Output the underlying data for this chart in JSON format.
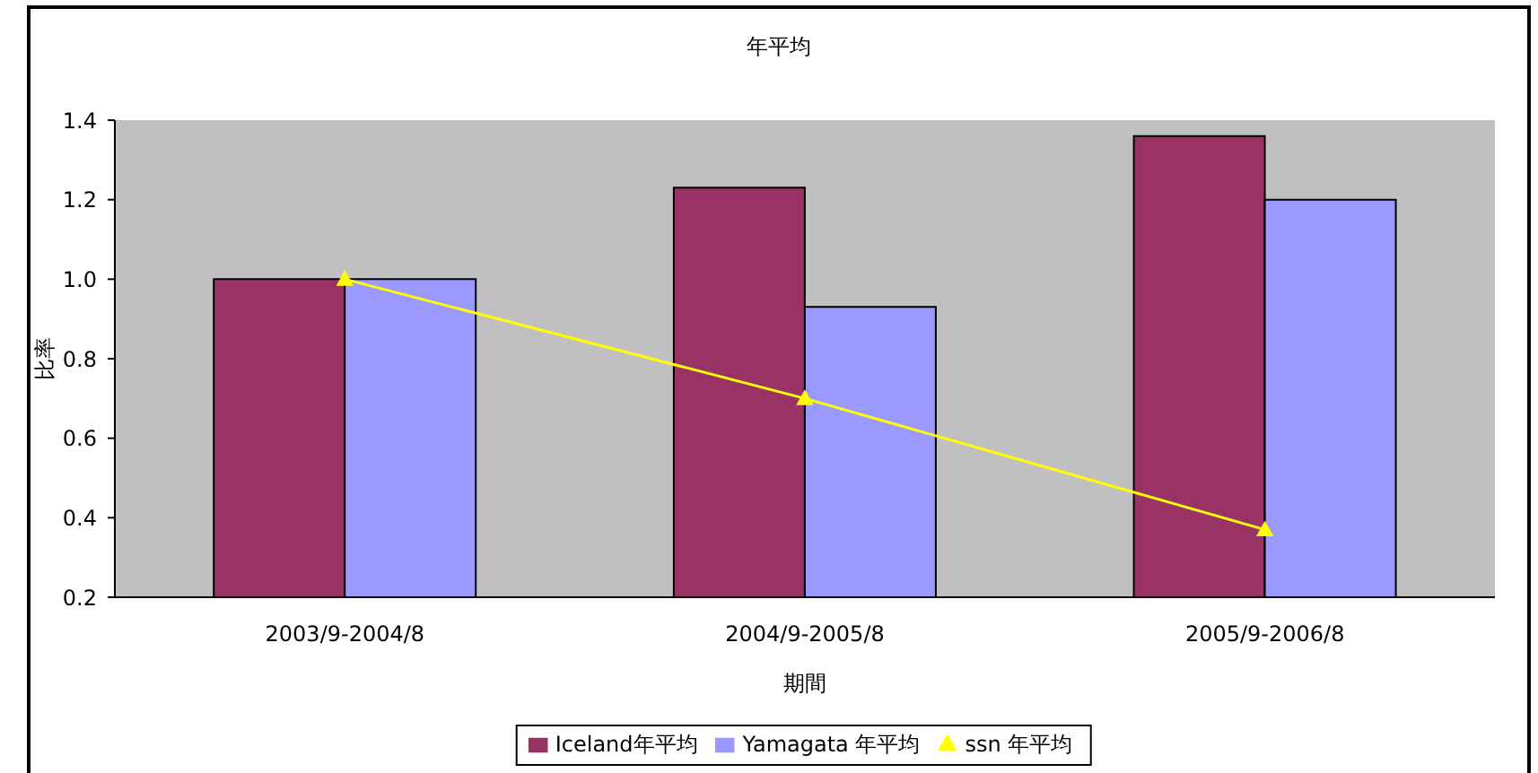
{
  "chart_data": {
    "type": "bar",
    "title": "年平均",
    "xlabel": "期間",
    "ylabel": "比率",
    "categories": [
      "2003/9-2004/8",
      "2004/9-2005/8",
      "2005/9-2006/8"
    ],
    "series": [
      {
        "name": "Iceland年平均",
        "color": "#993366",
        "values": [
          1.0,
          1.23,
          1.36
        ]
      },
      {
        "name": "Yamagata 年平均",
        "color": "#9999ff",
        "values": [
          1.0,
          0.93,
          1.2
        ]
      },
      {
        "name": "ssn 年平均",
        "type": "line",
        "color": "#ffff00",
        "marker": "triangle",
        "values": [
          1.0,
          0.7,
          0.37
        ]
      }
    ],
    "ylim": [
      0.2,
      1.4
    ],
    "yticks": [
      0.2,
      0.4,
      0.6,
      0.8,
      {
        "value": 1,
        "label": "1.0"
      },
      1.2,
      1.4
    ],
    "legend": "bottom"
  }
}
